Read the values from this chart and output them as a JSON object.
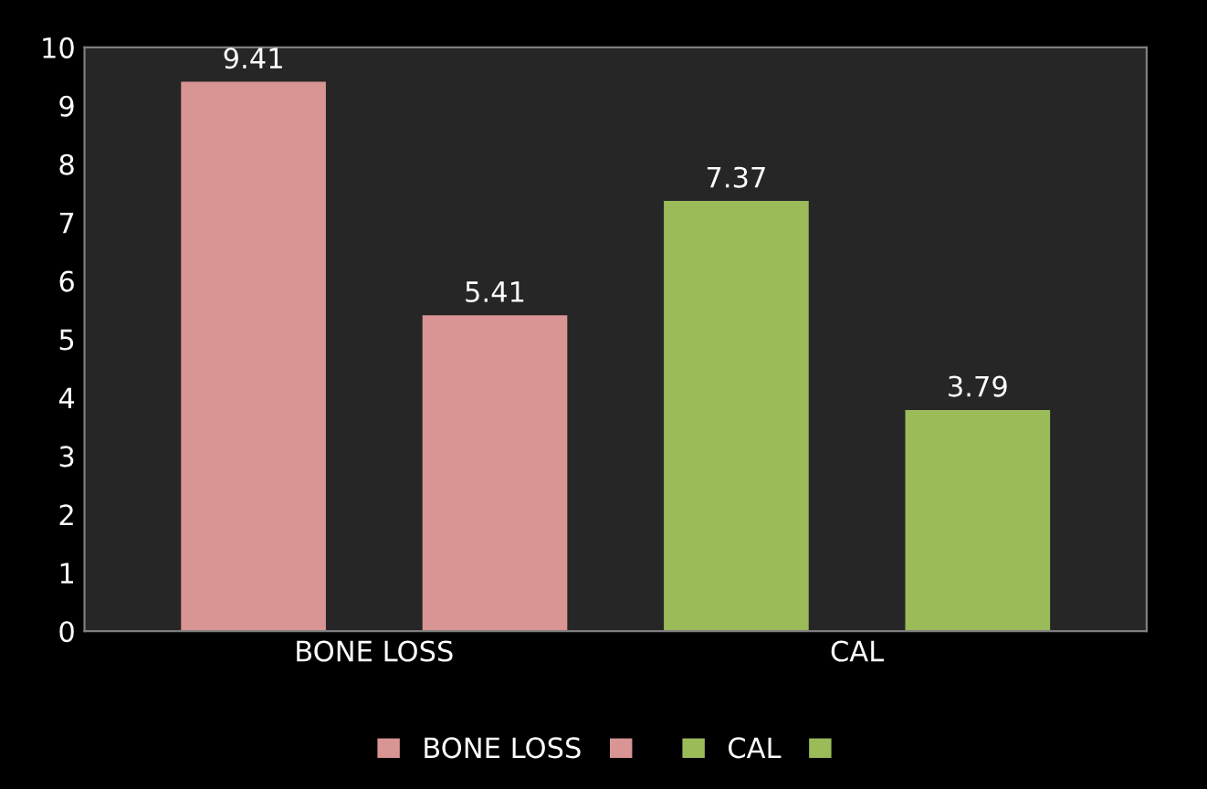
{
  "chart_data": {
    "type": "bar",
    "categories": [
      "BONE LOSS",
      "CAL"
    ],
    "series": [
      {
        "name": "BONE LOSS",
        "color": "#d99594",
        "values": [
          9.41,
          null
        ]
      },
      {
        "color": "#d99594",
        "values": [
          5.41,
          null
        ]
      },
      {
        "name": "CAL",
        "color": "#9bbb59",
        "values": [
          null,
          7.37
        ]
      },
      {
        "color": "#9bbb59",
        "values": [
          null,
          3.79
        ]
      }
    ],
    "ylim": [
      0,
      10
    ],
    "yticks": [
      0,
      1,
      2,
      3,
      4,
      5,
      6,
      7,
      8,
      9,
      10
    ],
    "data_labels": true,
    "legend": "bottom",
    "grid": false
  }
}
